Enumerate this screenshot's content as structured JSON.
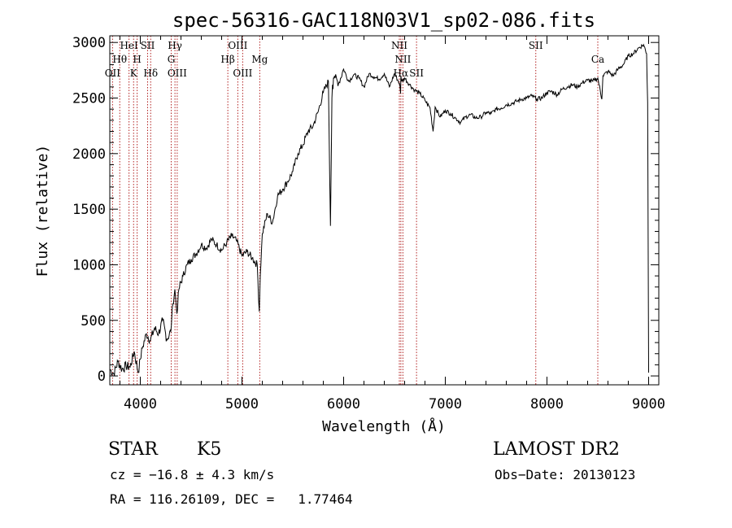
{
  "chart_data": {
    "type": "line",
    "title": "spec-56316-GAC118N03V1_sp02-086.fits",
    "xlabel": "Wavelength (Å)",
    "ylabel": "Flux (relative)",
    "xlim": [
      3700,
      9100
    ],
    "ylim": [
      -80,
      3060
    ],
    "x_ticks": [
      4000,
      5000,
      6000,
      7000,
      8000,
      9000
    ],
    "y_ticks": [
      0,
      500,
      1000,
      1500,
      2000,
      2500,
      3000
    ],
    "grid": false,
    "series": [
      {
        "x": [
          3700,
          3740,
          3780,
          3820,
          3860,
          3900,
          3940,
          3980,
          4000,
          4020,
          4060,
          4100,
          4140,
          4180,
          4220,
          4260,
          4300,
          4320,
          4340,
          4360,
          4380,
          4420,
          4460,
          4500,
          4550,
          4600,
          4650,
          4700,
          4750,
          4800,
          4850,
          4900,
          4950,
          5000,
          5050,
          5100,
          5150,
          5170,
          5180,
          5200,
          5250,
          5300,
          5350,
          5400,
          5450,
          5500,
          5550,
          5600,
          5650,
          5700,
          5750,
          5800,
          5850,
          5870,
          5885,
          5890,
          5895,
          5900,
          5910,
          5950,
          6000,
          6050,
          6100,
          6150,
          6200,
          6250,
          6300,
          6350,
          6400,
          6450,
          6500,
          6550,
          6560,
          6563,
          6570,
          6600,
          6650,
          6700,
          6750,
          6800,
          6850,
          6880,
          6900,
          6950,
          7000,
          7050,
          7100,
          7150,
          7200,
          7250,
          7300,
          7350,
          7400,
          7450,
          7500,
          7550,
          7600,
          7650,
          7700,
          7750,
          7800,
          7850,
          7900,
          7950,
          8000,
          8050,
          8100,
          8150,
          8200,
          8250,
          8300,
          8350,
          8400,
          8450,
          8500,
          8540,
          8550,
          8600,
          8650,
          8700,
          8750,
          8800,
          8850,
          8900,
          8950,
          8980,
          8990,
          9000
        ],
        "y": [
          60,
          20,
          130,
          60,
          90,
          80,
          220,
          30,
          150,
          250,
          380,
          320,
          430,
          380,
          500,
          330,
          400,
          650,
          780,
          560,
          780,
          900,
          1000,
          1050,
          1100,
          1180,
          1150,
          1230,
          1180,
          1130,
          1200,
          1260,
          1210,
          1080,
          1120,
          1060,
          1000,
          580,
          900,
          1280,
          1460,
          1380,
          1620,
          1680,
          1750,
          1840,
          2000,
          2080,
          2200,
          2250,
          2380,
          2550,
          2650,
          1350,
          2500,
          2620,
          2580,
          2680,
          2700,
          2630,
          2760,
          2650,
          2710,
          2680,
          2600,
          2720,
          2690,
          2670,
          2720,
          2600,
          2720,
          2630,
          2540,
          2700,
          2650,
          2680,
          2620,
          2570,
          2540,
          2480,
          2410,
          2200,
          2420,
          2330,
          2390,
          2360,
          2320,
          2280,
          2330,
          2350,
          2320,
          2330,
          2370,
          2360,
          2400,
          2410,
          2440,
          2450,
          2470,
          2490,
          2500,
          2520,
          2490,
          2500,
          2550,
          2560,
          2530,
          2580,
          2600,
          2620,
          2600,
          2640,
          2660,
          2650,
          2680,
          2490,
          2700,
          2740,
          2700,
          2760,
          2800,
          2880,
          2900,
          2950,
          2980,
          2900,
          2460,
          30
        ]
      }
    ],
    "spectral_lines": [
      {
        "wavelength": 3727,
        "labels": [
          "OII"
        ],
        "row": 3
      },
      {
        "wavelength": 3798,
        "labels": [
          "Hθ"
        ],
        "row": 2
      },
      {
        "wavelength": 3889,
        "labels": [
          "HeI"
        ],
        "row": 1
      },
      {
        "wavelength": 3934,
        "labels": [
          "K"
        ],
        "row": 3
      },
      {
        "wavelength": 3969,
        "labels": [
          "H"
        ],
        "row": 2
      },
      {
        "wavelength": 4072,
        "labels": [
          "SII"
        ],
        "row": 1
      },
      {
        "wavelength": 4102,
        "labels": [
          "Hδ"
        ],
        "row": 3
      },
      {
        "wavelength": 4304,
        "labels": [
          "G"
        ],
        "row": 2
      },
      {
        "wavelength": 4341,
        "labels": [
          "Hγ"
        ],
        "row": 1
      },
      {
        "wavelength": 4363,
        "labels": [
          "OIII"
        ],
        "row": 3
      },
      {
        "wavelength": 4861,
        "labels": [
          "Hβ"
        ],
        "row": 2
      },
      {
        "wavelength": 4959,
        "labels": [
          "OIII"
        ],
        "row": 1
      },
      {
        "wavelength": 5007,
        "labels": [
          "OIII"
        ],
        "row": 3
      },
      {
        "wavelength": 5175,
        "labels": [
          "Mg"
        ],
        "row": 2
      },
      {
        "wavelength": 6548,
        "labels": [
          "NII"
        ],
        "row": 1
      },
      {
        "wavelength": 6563,
        "labels": [
          "Hα"
        ],
        "row": 3
      },
      {
        "wavelength": 6583,
        "labels": [
          "NII"
        ],
        "row": 2
      },
      {
        "wavelength": 6717,
        "labels": [
          "SII"
        ],
        "row": 3
      },
      {
        "wavelength": 7890,
        "labels": [
          "SII"
        ],
        "row": 1
      },
      {
        "wavelength": 8500,
        "labels": [
          "Ca"
        ],
        "row": 2
      }
    ]
  },
  "info": {
    "class": "STAR",
    "subclass": "K5",
    "survey": "LAMOST DR2",
    "cz": "cz = −16.8 ± 4.3 km/s",
    "obs_date": "Obs−Date: 20130123",
    "coords": "RA = 116.26109, DEC =   1.77464"
  },
  "colors": {
    "spectrum": "#000000",
    "line_markers": "#b22222"
  }
}
